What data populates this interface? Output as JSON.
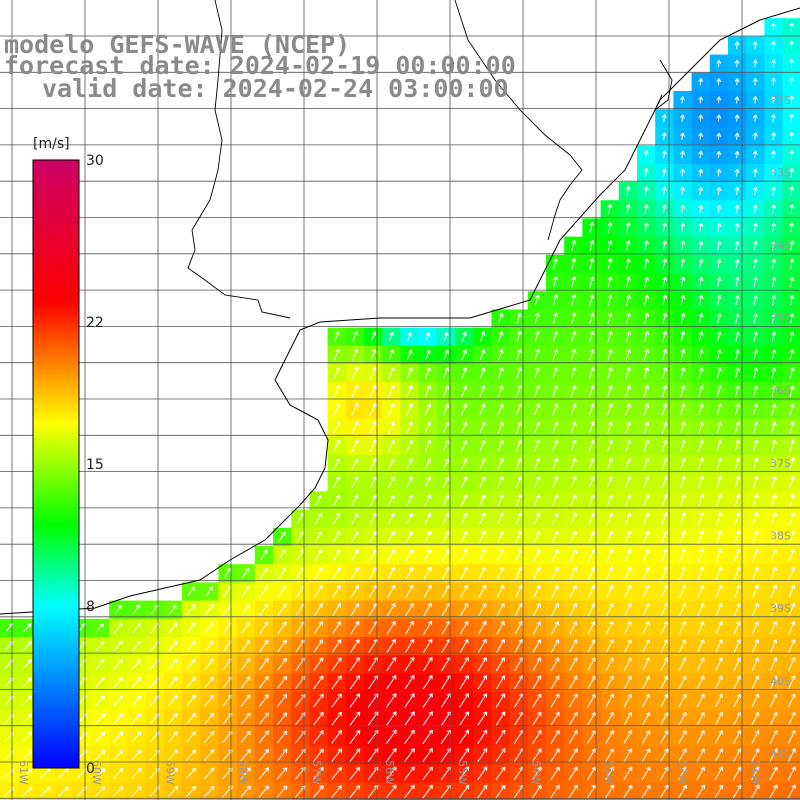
{
  "title": {
    "model": "modelo GEFS-WAVE (NCEP)",
    "forecast": "forecast date: 2024-02-19 00:00:00",
    "valid": "valid date: 2024-02-24 03:00:00"
  },
  "colorbar": {
    "unit": "[m/s]",
    "range": [
      0,
      30
    ],
    "tick_labels": [
      "30",
      "22",
      "15",
      "8",
      "0"
    ],
    "tick_values": [
      30,
      22,
      15,
      8,
      0
    ],
    "colors": [
      "#0000ff",
      "#00ffff",
      "#00ff00",
      "#ffff00",
      "#ff0000",
      "#cc0066"
    ]
  },
  "map": {
    "lon_labels": [
      "61W",
      "60W",
      "59W",
      "58W",
      "57W",
      "56W",
      "55W",
      "54W",
      "53W",
      "52W",
      "51W"
    ],
    "lat_labels": [
      "32S",
      "33S",
      "34S",
      "35S",
      "36S",
      "37S",
      "38S",
      "39S",
      "40S",
      "41S"
    ],
    "field": "wind speed",
    "arrows": "wind direction (to NE)",
    "colors": {
      "land": "#ffffff",
      "grid": "#555555",
      "coast": "#000000",
      "label": "#9a9a9a"
    }
  }
}
